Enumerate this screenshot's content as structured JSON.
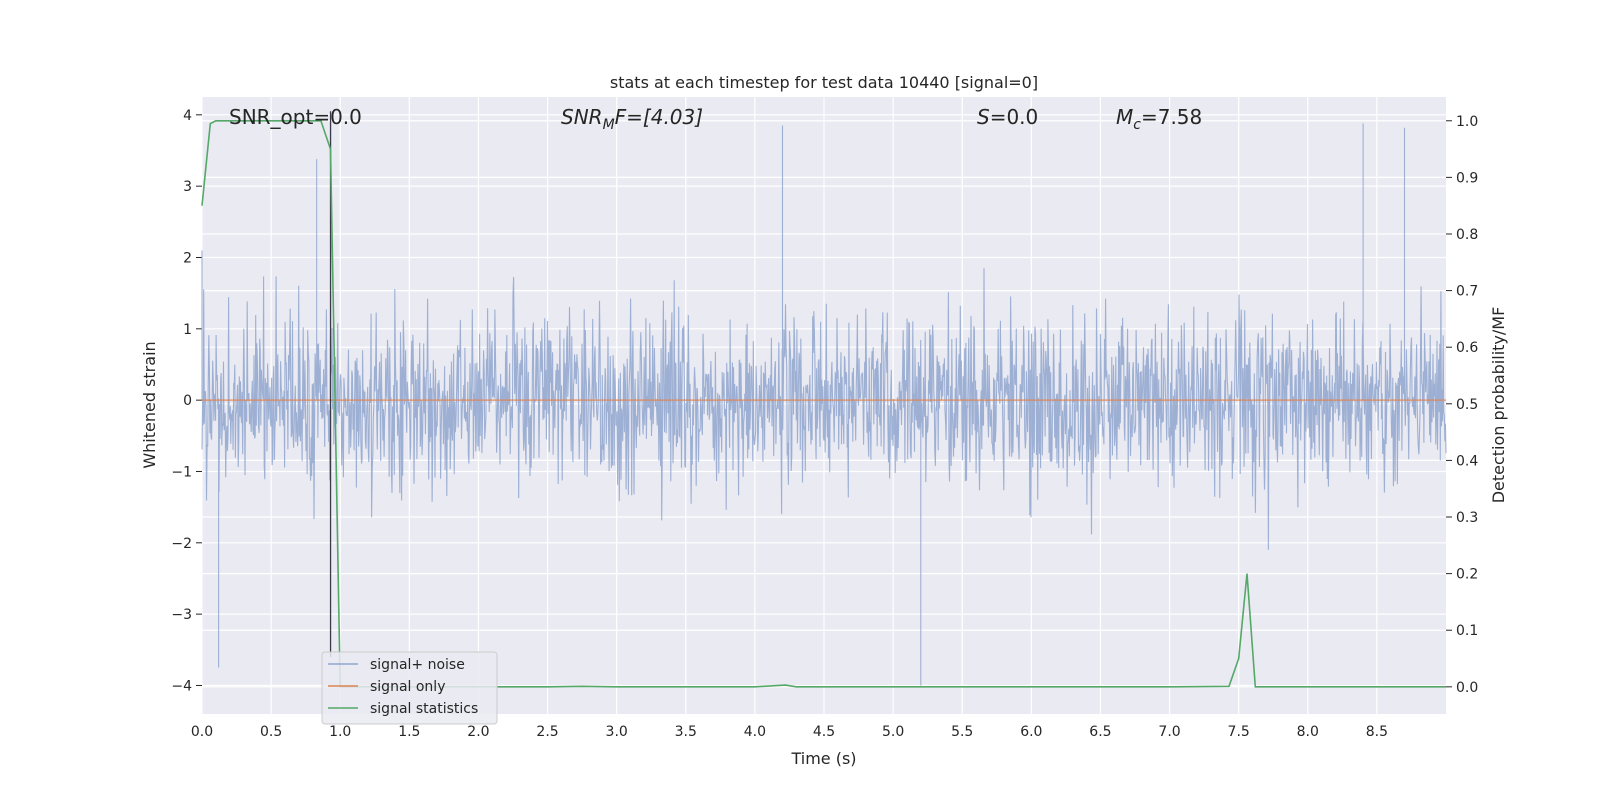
{
  "chart_data": {
    "type": "line",
    "title": "stats at each timestep for test data 10440 [signal=0]",
    "xlabel": "Time (s)",
    "ylabel": "Whitened strain",
    "y2label": "Detection probability/MF",
    "xlim": [
      0.0,
      9.0
    ],
    "ylim": [
      -4.4,
      4.25
    ],
    "y2lim": [
      -0.048,
      1.042
    ],
    "xticks": [
      "0.0",
      "0.5",
      "1.0",
      "1.5",
      "2.0",
      "2.5",
      "3.0",
      "3.5",
      "4.0",
      "4.5",
      "5.0",
      "5.5",
      "6.0",
      "6.5",
      "7.0",
      "7.5",
      "8.0",
      "8.5"
    ],
    "yticks": [
      "−4",
      "−3",
      "−2",
      "−1",
      "0",
      "1",
      "2",
      "3",
      "4"
    ],
    "y2ticks": [
      "0.0",
      "0.1",
      "0.2",
      "0.3",
      "0.4",
      "0.5",
      "0.6",
      "0.7",
      "0.8",
      "0.9",
      "1.0"
    ],
    "grid": true,
    "legend_placement": "lower-left",
    "marker_time": 0.93,
    "annotations": {
      "snr_opt": "SNR_opt=0.0",
      "snr_mf_base": "SNR",
      "snr_mf_sub": "M",
      "snr_mf_rest": "F=[4.03]",
      "s_var": "S",
      "s_rest": "=0.0",
      "mc_base": "M",
      "mc_sub": "c",
      "mc_rest": "=7.58"
    },
    "series": [
      {
        "name": "signal+ noise",
        "color": "#8fa6cf",
        "description_note": "whitened strain, noisy; amplitude envelope approx +/-2 with spikes to +/-3.9",
        "envelope_peaks": [
          {
            "x": 0.0,
            "y": 2.1
          },
          {
            "x": 0.12,
            "y": -3.75
          },
          {
            "x": 0.83,
            "y": 3.38
          },
          {
            "x": 0.93,
            "y": 3.9
          },
          {
            "x": 4.2,
            "y": 3.85
          },
          {
            "x": 5.2,
            "y": -4.0
          },
          {
            "x": 8.4,
            "y": 3.88
          },
          {
            "x": 8.7,
            "y": 3.82
          }
        ]
      },
      {
        "name": "signal only",
        "color": "#dd8452",
        "x": [
          0.0,
          9.0
        ],
        "y": [
          0.0,
          0.0
        ]
      },
      {
        "name": "signal statistics",
        "color": "#55a868",
        "x": [
          0.0,
          0.06,
          0.1,
          0.3,
          0.6,
          0.86,
          0.93,
          1.0,
          1.5,
          2.0,
          2.5,
          2.75,
          3.0,
          3.5,
          4.0,
          4.22,
          4.3,
          5.0,
          6.0,
          7.0,
          7.43,
          7.5,
          7.56,
          7.62,
          8.0,
          8.5,
          9.0
        ],
        "y": [
          0.85,
          0.995,
          1.0,
          1.0,
          1.0,
          1.0,
          0.95,
          0.0,
          0.0,
          0.0,
          0.0,
          0.001,
          0.0,
          0.0,
          0.0,
          0.003,
          0.0,
          0.0,
          0.0,
          0.0,
          0.001,
          0.05,
          0.2,
          0.0,
          0.0,
          0.0,
          0.0
        ]
      }
    ]
  }
}
